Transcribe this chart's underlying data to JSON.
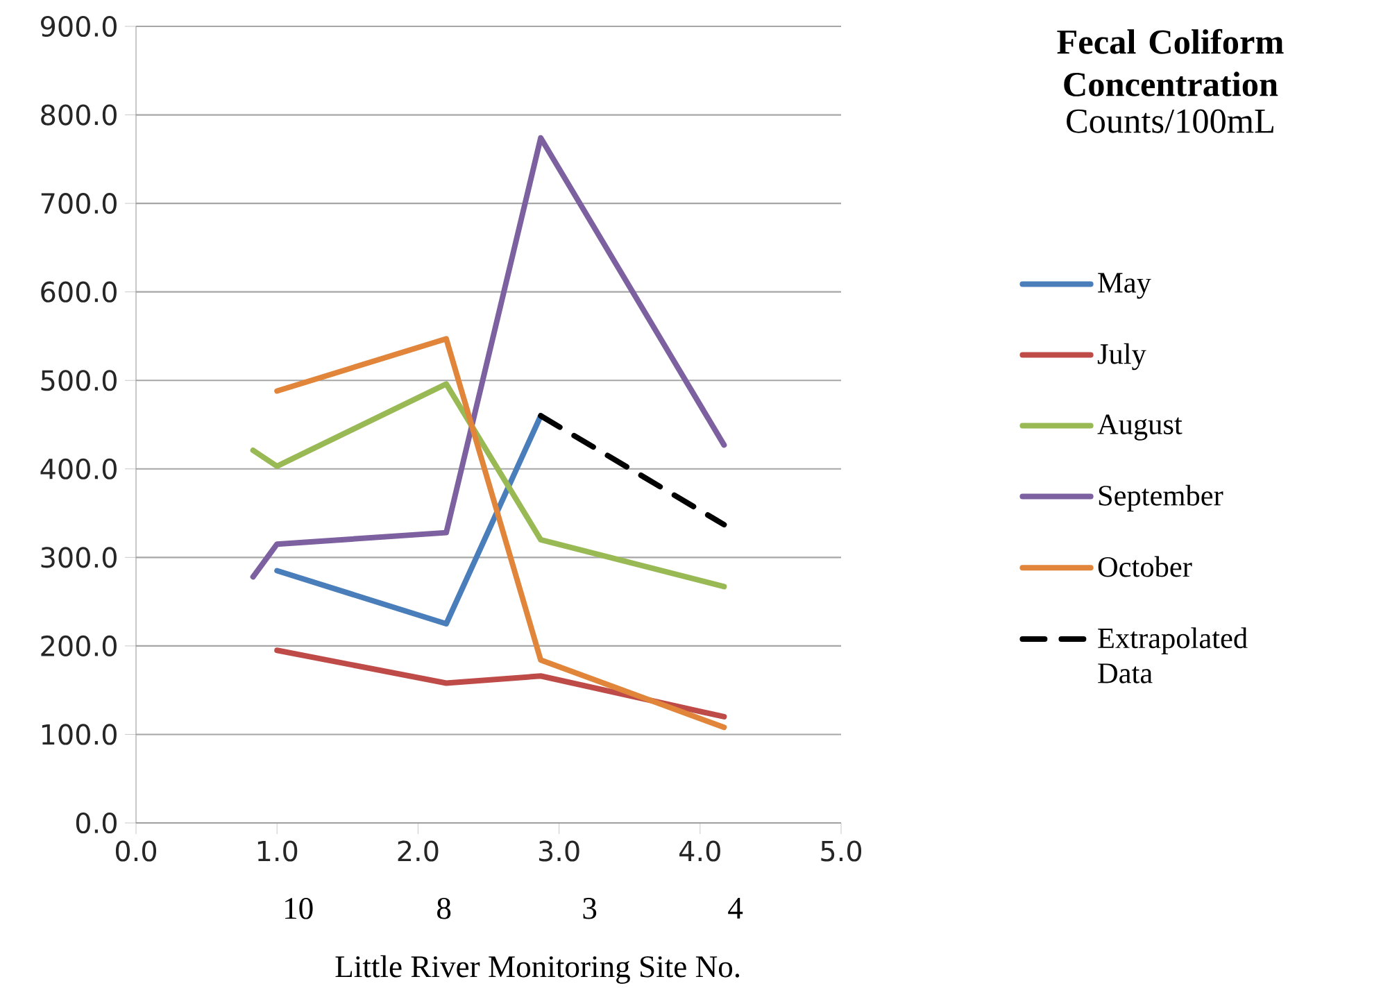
{
  "chart_data": {
    "type": "line",
    "title": "Fecal Coliform Concentration",
    "subtitle": "Counts/100mL",
    "xlabel": "Little River Monitoring Site No.",
    "annotations": [
      "10",
      "8",
      "3",
      "4"
    ],
    "xlim": [
      0,
      5
    ],
    "xticks": [
      {
        "value": 0,
        "label": "0.0"
      },
      {
        "value": 1,
        "label": "1.0"
      },
      {
        "value": 2,
        "label": "2.0"
      },
      {
        "value": 3,
        "label": "3.0"
      },
      {
        "value": 4,
        "label": "4.0"
      },
      {
        "value": 5,
        "label": "5.0"
      }
    ],
    "ylim": [
      0,
      900
    ],
    "yticks": [
      {
        "value": 0,
        "label": "0.0"
      },
      {
        "value": 100,
        "label": "100.0"
      },
      {
        "value": 200,
        "label": "200.0"
      },
      {
        "value": 300,
        "label": "300.0"
      },
      {
        "value": 400,
        "label": "400.0"
      },
      {
        "value": 500,
        "label": "500.0"
      },
      {
        "value": 600,
        "label": "600.0"
      },
      {
        "value": 700,
        "label": "700.0"
      },
      {
        "value": 800,
        "label": "800.0"
      },
      {
        "value": 900,
        "label": "900.0"
      }
    ],
    "grid": "y",
    "legend": "right",
    "marker": "none",
    "series": [
      {
        "name": "May",
        "color": "#4a7ebb",
        "x": [
          1.0,
          2.2,
          2.87
        ],
        "values": [
          285,
          225,
          460
        ]
      },
      {
        "name": "July",
        "color": "#be4b48",
        "x": [
          1.0,
          2.2,
          2.87,
          4.17
        ],
        "values": [
          195,
          158,
          166,
          120
        ]
      },
      {
        "name": "August",
        "color": "#98b954",
        "x": [
          0.83,
          1.0,
          2.2,
          2.87,
          4.17
        ],
        "values": [
          421,
          403,
          496,
          320,
          267
        ]
      },
      {
        "name": "September",
        "color": "#7d60a0",
        "x": [
          0.83,
          1.0,
          2.2,
          2.87,
          4.17
        ],
        "values": [
          278,
          315,
          328,
          774,
          427
        ]
      },
      {
        "name": "October",
        "color": "#e0853a",
        "x": [
          1.0,
          2.2,
          2.87,
          4.17
        ],
        "values": [
          488,
          547,
          184,
          108
        ]
      },
      {
        "name": "Extrapolated Data",
        "color": "#000000",
        "line_style": "dashed",
        "x": [
          2.87,
          4.17
        ],
        "values": [
          460,
          337
        ]
      }
    ]
  }
}
